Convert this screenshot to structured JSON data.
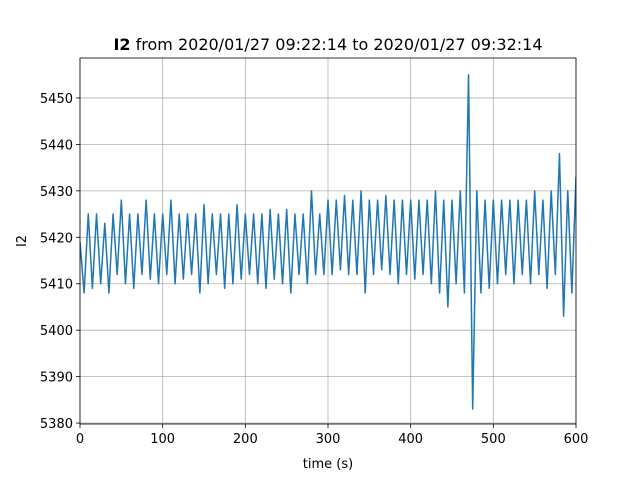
{
  "chart_data": {
    "type": "line",
    "title_bold": "I2",
    "title": "from 2020/01/27 09:22:14 to 2020/01/27 09:32:14",
    "xlabel": "time (s)",
    "ylabel": "I2",
    "xlim": [
      0,
      600
    ],
    "xticks": [
      0,
      100,
      200,
      300,
      400,
      500,
      600
    ],
    "ylim": [
      5379.8,
      5458.6
    ],
    "yticks": [
      5380,
      5390,
      5400,
      5410,
      5420,
      5430,
      5440,
      5450
    ],
    "grid": true,
    "x": [
      0,
      5,
      10,
      15,
      20,
      25,
      30,
      35,
      40,
      45,
      50,
      55,
      60,
      65,
      70,
      75,
      80,
      85,
      90,
      95,
      100,
      105,
      110,
      115,
      120,
      125,
      130,
      135,
      140,
      145,
      150,
      155,
      160,
      165,
      170,
      175,
      180,
      185,
      190,
      195,
      200,
      205,
      210,
      215,
      220,
      225,
      230,
      235,
      240,
      245,
      250,
      255,
      260,
      265,
      270,
      275,
      280,
      285,
      290,
      295,
      300,
      305,
      310,
      315,
      320,
      325,
      330,
      335,
      340,
      345,
      350,
      355,
      360,
      365,
      370,
      375,
      380,
      385,
      390,
      395,
      400,
      405,
      410,
      415,
      420,
      425,
      430,
      435,
      440,
      445,
      450,
      455,
      460,
      465,
      470,
      475,
      480,
      485,
      490,
      495,
      500,
      505,
      510,
      515,
      520,
      525,
      530,
      535,
      540,
      545,
      550,
      555,
      560,
      565,
      570,
      575,
      580,
      585,
      590,
      595,
      600
    ],
    "series": [
      {
        "name": "I2",
        "color": "#1f77b4",
        "values": [
          5419,
          5408,
          5425,
          5409,
          5425,
          5410,
          5423,
          5408,
          5425,
          5412,
          5428,
          5410,
          5425,
          5409,
          5425,
          5412,
          5428,
          5411,
          5425,
          5410,
          5425,
          5412,
          5428,
          5410,
          5425,
          5411,
          5425,
          5412,
          5425,
          5408,
          5427,
          5410,
          5425,
          5412,
          5425,
          5409,
          5425,
          5410,
          5427,
          5411,
          5425,
          5412,
          5425,
          5410,
          5425,
          5409,
          5426,
          5411,
          5425,
          5410,
          5426,
          5408,
          5425,
          5412,
          5425,
          5410,
          5430,
          5412,
          5425,
          5412,
          5428,
          5412,
          5428,
          5413,
          5429,
          5412,
          5428,
          5412,
          5430,
          5408,
          5428,
          5412,
          5428,
          5413,
          5429,
          5412,
          5428,
          5410,
          5428,
          5412,
          5428,
          5411,
          5428,
          5412,
          5428,
          5410,
          5430,
          5408,
          5428,
          5405,
          5428,
          5410,
          5430,
          5408,
          5455,
          5383,
          5430,
          5408,
          5428,
          5409,
          5428,
          5410,
          5428,
          5412,
          5428,
          5410,
          5428,
          5412,
          5428,
          5410,
          5430,
          5412,
          5428,
          5409,
          5430,
          5412,
          5438,
          5403,
          5430,
          5408,
          5433
        ]
      }
    ]
  }
}
